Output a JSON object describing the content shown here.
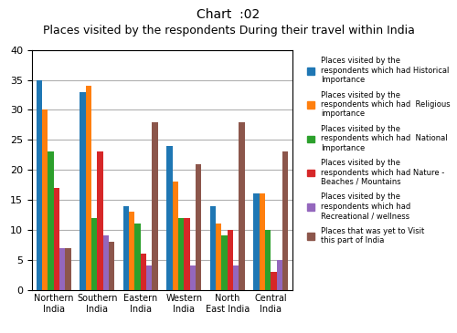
{
  "chart_data": {
    "type": "bar",
    "title": "Chart  :02",
    "subtitle": "Places visited by the respondents During their travel within India",
    "categories": [
      "Northern\nIndia",
      "Southern\nIndia",
      "Eastern\nIndia",
      "Western\nIndia",
      "North\nEast India",
      "Central\nIndia"
    ],
    "series": [
      {
        "name": "Places visited by the\nrespondents which had Historical\nImportance",
        "values": [
          35,
          33,
          14,
          24,
          14,
          16
        ]
      },
      {
        "name": "Places visited by the\nrespondents which had  Religious\nimportance",
        "values": [
          30,
          34,
          13,
          18,
          11,
          16
        ]
      },
      {
        "name": "Places visited by the\nrespondents which had  National\nImportance",
        "values": [
          23,
          12,
          11,
          12,
          9,
          10
        ]
      },
      {
        "name": "Places visited by the\nrespondents which had Nature -\nBeaches / Mountains",
        "values": [
          17,
          23,
          6,
          12,
          10,
          3
        ]
      },
      {
        "name": "Places visited by the\nrespondents which had\nRecreational / wellness",
        "values": [
          7,
          9,
          4,
          4,
          4,
          5
        ]
      },
      {
        "name": "Places that was yet to Visit\nthis part of India",
        "values": [
          7,
          8,
          28,
          21,
          28,
          23
        ]
      }
    ],
    "ylim": [
      0,
      40
    ],
    "yticks": [
      0,
      5,
      10,
      15,
      20,
      25,
      30,
      35,
      40
    ],
    "grid": true,
    "legend": "upper left"
  }
}
